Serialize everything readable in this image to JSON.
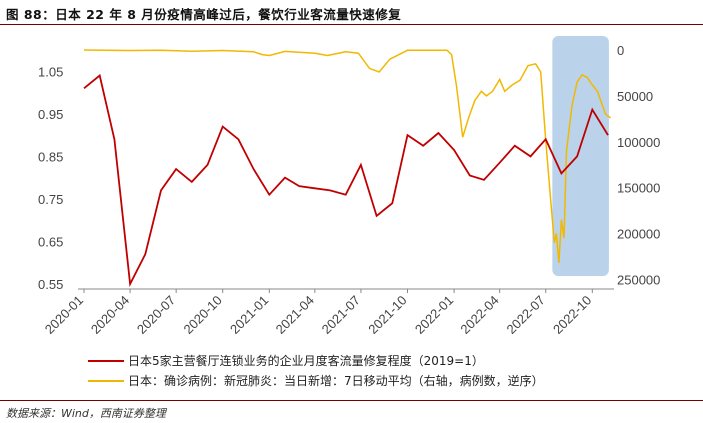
{
  "figure": {
    "title": "图 88：日本 22 年 8 月份疫情高峰过后，餐饮行业客流量快速修复",
    "source": "数据来源：Wind，西南证券整理"
  },
  "colors": {
    "restaurant": "#c00000",
    "covid": "#f2b800",
    "highlight": "#aecbe6",
    "rule": "#7a0000"
  },
  "chart_data": {
    "type": "line",
    "x_tick_labels": [
      "2020-01",
      "2020-04",
      "2020-07",
      "2020-10",
      "2021-01",
      "2021-04",
      "2021-07",
      "2021-10",
      "2022-01",
      "2022-04",
      "2022-07",
      "2022-10"
    ],
    "y_left": {
      "ticks": [
        "1.05",
        "0.95",
        "0.85",
        "0.75",
        "0.65",
        "0.55"
      ],
      "ylim": [
        0.55,
        1.1
      ]
    },
    "y_right": {
      "ticks": [
        "0",
        "50000",
        "100000",
        "150000",
        "200000",
        "250000"
      ],
      "ylim": [
        0,
        255000
      ],
      "inverted": true
    },
    "highlight_period": [
      "2022-08",
      "2022-11"
    ],
    "series": [
      {
        "name": "日本5家主营餐厅连锁业务的企业月度客流量修复程度（2019=1）",
        "axis": "left",
        "x": [
          "2020-01",
          "2020-02",
          "2020-03",
          "2020-04",
          "2020-05",
          "2020-06",
          "2020-07",
          "2020-08",
          "2020-09",
          "2020-10",
          "2020-11",
          "2020-12",
          "2021-01",
          "2021-02",
          "2021-03",
          "2021-04",
          "2021-05",
          "2021-06",
          "2021-07",
          "2021-08",
          "2021-09",
          "2021-10",
          "2021-11",
          "2021-12",
          "2022-01",
          "2022-02",
          "2022-03",
          "2022-04",
          "2022-05",
          "2022-06",
          "2022-07",
          "2022-08",
          "2022-09",
          "2022-10",
          "2022-11"
        ],
        "values": [
          1.01,
          1.04,
          0.89,
          0.55,
          0.62,
          0.77,
          0.82,
          0.79,
          0.83,
          0.92,
          0.89,
          0.82,
          0.76,
          0.8,
          0.78,
          0.775,
          0.77,
          0.76,
          0.83,
          0.71,
          0.74,
          0.9,
          0.875,
          0.905,
          0.865,
          0.805,
          0.795,
          0.835,
          0.875,
          0.85,
          0.89,
          0.81,
          0.85,
          0.96,
          0.9
        ]
      },
      {
        "name": "日本：确诊病例：新冠肺炎：当日新增：7日移动平均（右轴，病例数，逆序）",
        "axis": "right",
        "x": [
          "2020-01",
          "2020-04",
          "2020-06",
          "2020-08",
          "2020-10",
          "2020-12",
          "2021-01-01",
          "2021-01-15",
          "2021-02",
          "2021-04",
          "2021-05-10",
          "2021-06",
          "2021-07-10",
          "2021-08-01",
          "2021-08-20",
          "2021-09-10",
          "2021-10",
          "2021-12",
          "2022-01-01",
          "2022-01-10",
          "2022-01-20",
          "2022-02-01",
          "2022-02-12",
          "2022-02-25",
          "2022-03-10",
          "2022-03-20",
          "2022-04-01",
          "2022-04-15",
          "2022-04-25",
          "2022-05-10",
          "2022-05-25",
          "2022-06-10",
          "2022-06-25",
          "2022-07-05",
          "2022-07-15",
          "2022-07-25",
          "2022-08-01",
          "2022-08-05",
          "2022-08-10",
          "2022-08-15",
          "2022-08-20",
          "2022-08-25",
          "2022-09-05",
          "2022-09-15",
          "2022-09-25",
          "2022-10-05",
          "2022-10-15",
          "2022-10-25",
          "2022-11-10",
          "2022-11-20"
        ],
        "values": [
          0,
          500,
          300,
          1300,
          500,
          2000,
          5000,
          6000,
          1500,
          3500,
          6000,
          2000,
          3500,
          20000,
          24000,
          10000,
          300,
          200,
          200,
          5000,
          40000,
          95000,
          75000,
          55000,
          45000,
          50000,
          45000,
          32000,
          45000,
          38000,
          33000,
          17000,
          15000,
          24000,
          98000,
          165000,
          210000,
          200000,
          232000,
          185000,
          205000,
          110000,
          60000,
          35000,
          27000,
          30000,
          38000,
          45000,
          70000,
          74000
        ]
      }
    ],
    "legend_position": "bottom"
  }
}
